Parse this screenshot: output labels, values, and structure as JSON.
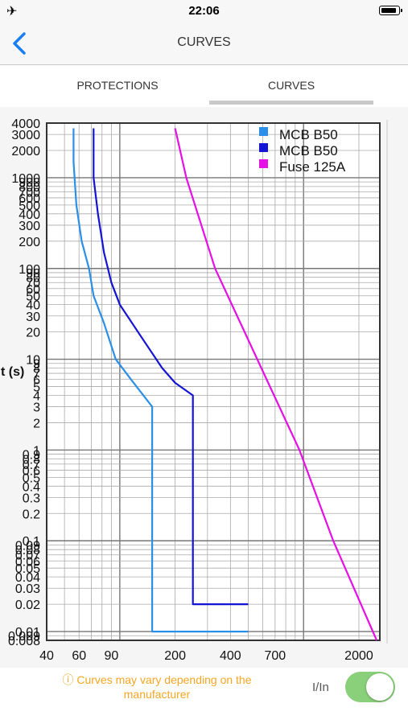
{
  "status_bar": {
    "airplane_icon": "airplane-icon",
    "time": "22:06",
    "battery_icon": "battery-icon"
  },
  "nav": {
    "back_icon": "chevron-left-icon",
    "title": "CURVES"
  },
  "tabs": [
    {
      "label": "PROTECTIONS",
      "selected": false
    },
    {
      "label": "CURVES",
      "selected": true
    }
  ],
  "footer": {
    "note_icon": "info-icon",
    "note_line1": "ⓘ Curves may vary depending on the",
    "note_line2": "manufacturer",
    "toggle_label": "I/In",
    "toggle_on": true,
    "toggle_color": "#8ad07a"
  },
  "chart_data": {
    "type": "line",
    "title": "",
    "xlabel": "",
    "ylabel": "t (s)",
    "x_scale": "log",
    "y_scale": "log",
    "xlim": [
      40,
      2600
    ],
    "ylim": [
      0.008,
      4000
    ],
    "grid": true,
    "legend_position": "top-right",
    "x_ticks": [
      40,
      60,
      90,
      200,
      400,
      700,
      2000
    ],
    "x_tick_labels": [
      "40",
      "60",
      "90",
      "200",
      "400",
      "700",
      "2000"
    ],
    "y_ticks": [
      4000,
      3000,
      2000,
      1000,
      900,
      800,
      700,
      600,
      500,
      400,
      300,
      200,
      100,
      90,
      80,
      70,
      60,
      50,
      40,
      30,
      20,
      10,
      9,
      8,
      7,
      6,
      5,
      4,
      3,
      2,
      1,
      0.9,
      0.8,
      0.7,
      0.6,
      0.5,
      0.4,
      0.3,
      0.2,
      0.1,
      0.09,
      0.08,
      0.07,
      0.06,
      0.05,
      0.04,
      0.03,
      0.02,
      0.01,
      0.009,
      0.008
    ],
    "y_tick_labels": [
      "4000",
      "3000",
      "2000",
      "1000",
      "900",
      "800",
      "700",
      "600",
      "500",
      "400",
      "300",
      "200",
      "100",
      "90",
      "80",
      "70",
      "60",
      "50",
      "40",
      "30",
      "20",
      "10",
      "9",
      "8",
      "7",
      "6",
      "5",
      "4",
      "3",
      "2",
      "1",
      "0.9",
      "0.8",
      "0.7",
      "0.6",
      "0.5",
      "0.4",
      "0.3",
      "0.2",
      "0.1",
      "0.09",
      "0.08",
      "0.07",
      "0.06",
      "0.05",
      "0.04",
      "0.03",
      "0.02",
      "0.01",
      "0.009",
      "0.008"
    ],
    "series": [
      {
        "name": "MCB B50",
        "color": "#2a8fe8",
        "points": [
          [
            56,
            3500
          ],
          [
            56,
            1500
          ],
          [
            58,
            500
          ],
          [
            62,
            200
          ],
          [
            68,
            100
          ],
          [
            72,
            50
          ],
          [
            82,
            25
          ],
          [
            95,
            10
          ],
          [
            115,
            6
          ],
          [
            150,
            3
          ],
          [
            150,
            0.01
          ],
          [
            500,
            0.01
          ]
        ]
      },
      {
        "name": "MCB B50",
        "color": "#1414d4",
        "points": [
          [
            72,
            3500
          ],
          [
            72,
            1000
          ],
          [
            76,
            400
          ],
          [
            82,
            150
          ],
          [
            90,
            70
          ],
          [
            100,
            40
          ],
          [
            130,
            18
          ],
          [
            170,
            8
          ],
          [
            200,
            5.5
          ],
          [
            250,
            4
          ],
          [
            250,
            0.02
          ],
          [
            500,
            0.02
          ]
        ]
      },
      {
        "name": "Fuse 125A",
        "color": "#e60fe6",
        "points": [
          [
            200,
            3500
          ],
          [
            230,
            1000
          ],
          [
            330,
            100
          ],
          [
            560,
            10
          ],
          [
            950,
            1
          ],
          [
            1450,
            0.1
          ],
          [
            2500,
            0.008
          ]
        ]
      }
    ]
  }
}
